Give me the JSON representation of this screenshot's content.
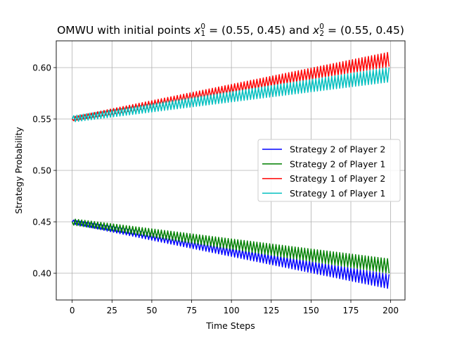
{
  "chart_data": {
    "type": "line",
    "title": {
      "prefix": "OMWU with initial points ",
      "x1_var": "x",
      "x1_sub": "1",
      "x1_sup": "0",
      "x1_value": " = (0.55, 0.45)",
      "connector": " and ",
      "x2_var": "x",
      "x2_sub": "2",
      "x2_sup": "0",
      "x2_value": " = (0.55, 0.45)"
    },
    "xlabel": "Time Steps",
    "ylabel": "Strategy Probability",
    "xlim": [
      -10,
      209
    ],
    "ylim": [
      0.374,
      0.626
    ],
    "x_ticks": [
      0,
      25,
      50,
      75,
      100,
      125,
      150,
      175,
      200
    ],
    "y_ticks": [
      0.4,
      0.45,
      0.5,
      0.55,
      0.6
    ],
    "y_tick_labels": [
      "0.40",
      "0.45",
      "0.50",
      "0.55",
      "0.60"
    ],
    "grid": true,
    "legend_position": "center-right",
    "x_range": [
      0,
      199
    ],
    "series": [
      {
        "name": "Strategy 2 of Player 2",
        "color": "#0000ff",
        "start": 0.45,
        "trend_end": 0.392,
        "osc_amp_start": 0.002,
        "osc_amp_end": 0.007,
        "osc_sign": -1
      },
      {
        "name": "Strategy 2 of Player 1",
        "color": "#008000",
        "start": 0.45,
        "trend_end": 0.407,
        "osc_amp_start": 0.003,
        "osc_amp_end": 0.007,
        "osc_sign": 1
      },
      {
        "name": "Strategy 1 of Player 2",
        "color": "#ff0000",
        "start": 0.55,
        "trend_end": 0.608,
        "osc_amp_start": 0.002,
        "osc_amp_end": 0.007,
        "osc_sign": 1
      },
      {
        "name": "Strategy 1 of Player 1",
        "color": "#00bfbf",
        "start": 0.55,
        "trend_end": 0.593,
        "osc_amp_start": 0.003,
        "osc_amp_end": 0.007,
        "osc_sign": -1
      }
    ]
  }
}
